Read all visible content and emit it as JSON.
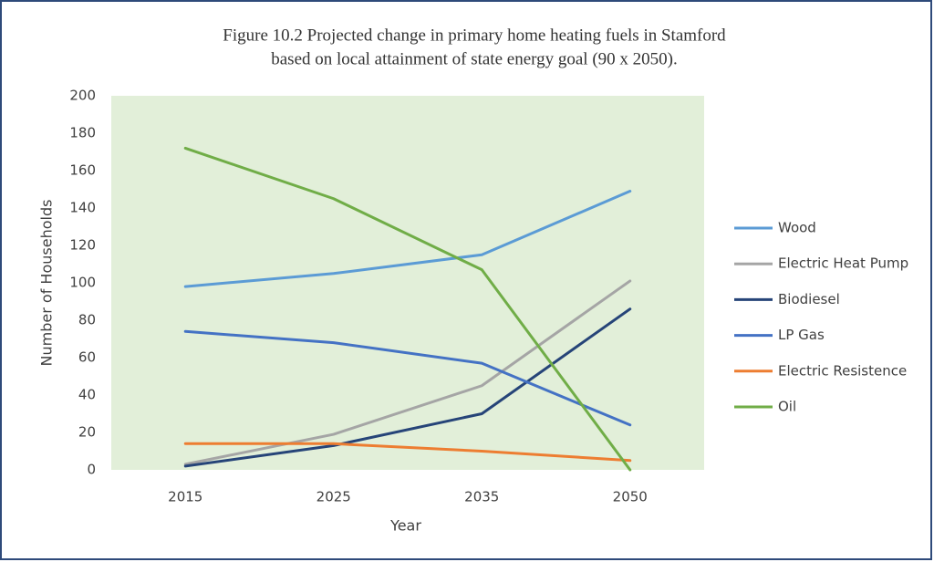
{
  "chart_data": {
    "type": "line",
    "title": [
      "Figure 10.2  Projected change  in primary home heating fuels in Stamford",
      "based on local attainment of state energy goal (90 x 2050)."
    ],
    "xlabel": "Year",
    "ylabel": "Number of Households",
    "categories": [
      "2015",
      "2025",
      "2035",
      "2050"
    ],
    "series": [
      {
        "name": "Wood",
        "color": "#5b9bd5",
        "values": [
          98,
          105,
          115,
          149
        ]
      },
      {
        "name": "Electric Heat Pump",
        "color": "#a5a5a5",
        "values": [
          3,
          19,
          45,
          101
        ]
      },
      {
        "name": "Biodiesel",
        "color": "#264478",
        "values": [
          2,
          13,
          30,
          86
        ]
      },
      {
        "name": "LP Gas",
        "color": "#4472c4",
        "values": [
          74,
          68,
          57,
          24
        ]
      },
      {
        "name": "Electric Resistence",
        "color": "#ed7d31",
        "values": [
          14,
          14,
          10,
          5
        ]
      },
      {
        "name": "Oil",
        "color": "#70ad47",
        "values": [
          172,
          145,
          107,
          0
        ]
      }
    ],
    "ylim": [
      0,
      200
    ],
    "yticks": [
      0,
      20,
      40,
      60,
      80,
      100,
      120,
      140,
      160,
      180,
      200
    ],
    "grid": false,
    "legend": "right"
  }
}
